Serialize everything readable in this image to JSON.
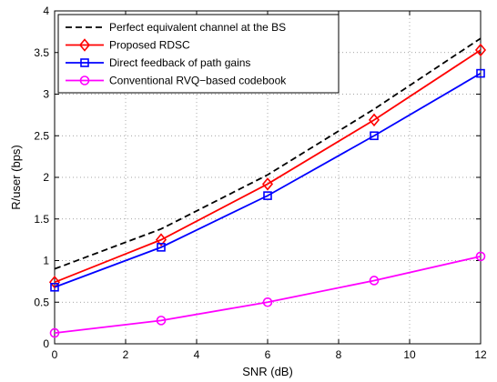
{
  "chart_data": {
    "type": "line",
    "title": "",
    "xlabel": "SNR (dB)",
    "ylabel": "R/user (bps)",
    "xlim": [
      0,
      12
    ],
    "ylim": [
      0,
      4
    ],
    "xticks": [
      0,
      2,
      4,
      6,
      8,
      10,
      12
    ],
    "yticks": [
      0,
      0.5,
      1,
      1.5,
      2,
      2.5,
      3,
      3.5,
      4
    ],
    "xtick_labels": [
      "0",
      "2",
      "4",
      "6",
      "8",
      "10",
      "12"
    ],
    "ytick_labels": [
      "0",
      "0.5",
      "1",
      "1.5",
      "2",
      "2.5",
      "3",
      "3.5",
      "4"
    ],
    "grid": true,
    "legend_position": "top-left",
    "series": [
      {
        "name": "Perfect equivalent channel at the BS",
        "x": [
          0,
          3,
          6,
          9,
          12
        ],
        "y": [
          0.9,
          1.38,
          2.03,
          2.82,
          3.67
        ],
        "color": "#000000",
        "dash": "dashed",
        "marker": "none"
      },
      {
        "name": "Proposed RDSC",
        "x": [
          0,
          3,
          6,
          9,
          12
        ],
        "y": [
          0.74,
          1.25,
          1.92,
          2.69,
          3.53
        ],
        "color": "#ff0000",
        "dash": "solid",
        "marker": "diamond"
      },
      {
        "name": "Direct feedback of path gains",
        "x": [
          0,
          3,
          6,
          9,
          12
        ],
        "y": [
          0.68,
          1.16,
          1.78,
          2.5,
          3.25
        ],
        "color": "#0000ff",
        "dash": "solid",
        "marker": "square"
      },
      {
        "name": "Conventional RVQ−based codebook",
        "x": [
          0,
          3,
          6,
          9,
          12
        ],
        "y": [
          0.13,
          0.28,
          0.5,
          0.76,
          1.05
        ],
        "color": "#ff00ff",
        "dash": "solid",
        "marker": "circle"
      }
    ]
  }
}
